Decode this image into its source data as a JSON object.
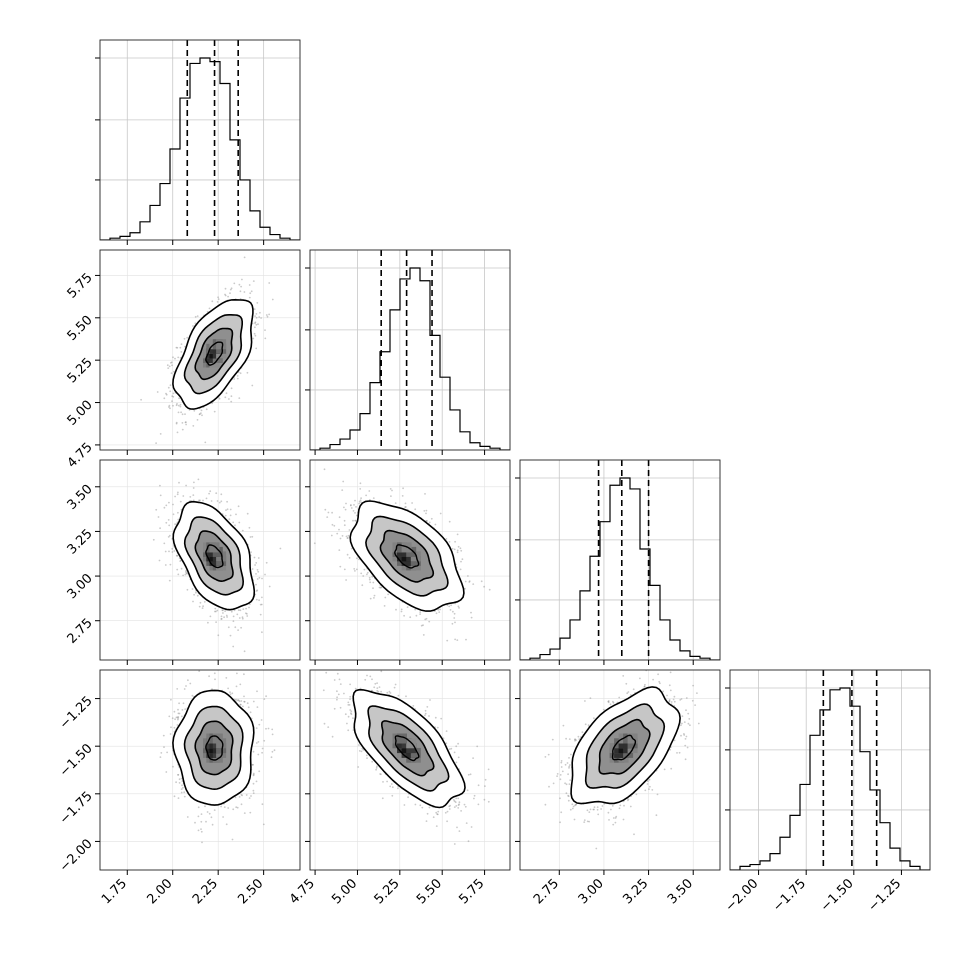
{
  "chart_data": {
    "type": "corner",
    "parameters": [
      {
        "index": 0,
        "range": [
          1.6,
          2.7
        ],
        "ticks": [
          1.75,
          2.0,
          2.25,
          2.5
        ],
        "tick_labels": [
          "1.75",
          "2.00",
          "2.25",
          "2.50"
        ],
        "quantiles": [
          2.08,
          2.23,
          2.36
        ],
        "mean": 2.23,
        "sd": 0.1,
        "hist": {
          "edges": [
            1.6,
            1.655,
            1.71,
            1.765,
            1.82,
            1.875,
            1.93,
            1.985,
            2.04,
            2.095,
            2.15,
            2.205,
            2.26,
            2.315,
            2.37,
            2.425,
            2.48,
            2.535,
            2.59,
            2.645,
            2.7
          ],
          "counts": [
            0.0,
            0.01,
            0.02,
            0.04,
            0.1,
            0.19,
            0.31,
            0.5,
            0.78,
            0.97,
            1.0,
            0.98,
            0.86,
            0.55,
            0.33,
            0.16,
            0.07,
            0.03,
            0.01,
            0.0
          ]
        }
      },
      {
        "index": 1,
        "range": [
          4.72,
          5.9
        ],
        "ticks": [
          4.75,
          5.0,
          5.25,
          5.5,
          5.75
        ],
        "tick_labels": [
          "4.75",
          "5.00",
          "5.25",
          "5.50",
          "5.75"
        ],
        "quantiles": [
          5.14,
          5.29,
          5.44
        ],
        "mean": 5.29,
        "sd": 0.15,
        "hist": {
          "edges": [
            4.72,
            4.779,
            4.838,
            4.897,
            4.956,
            5.015,
            5.074,
            5.133,
            5.192,
            5.251,
            5.31,
            5.369,
            5.428,
            5.487,
            5.546,
            5.605,
            5.664,
            5.723,
            5.782,
            5.841,
            5.9
          ],
          "counts": [
            0.0,
            0.01,
            0.03,
            0.06,
            0.11,
            0.2,
            0.37,
            0.54,
            0.77,
            0.94,
            1.0,
            0.93,
            0.63,
            0.4,
            0.22,
            0.1,
            0.04,
            0.02,
            0.01,
            0.0
          ]
        }
      },
      {
        "index": 2,
        "range": [
          2.53,
          3.65
        ],
        "ticks": [
          2.75,
          3.0,
          3.25,
          3.5
        ],
        "tick_labels": [
          "2.75",
          "3.00",
          "3.25",
          "3.50"
        ],
        "quantiles": [
          2.97,
          3.1,
          3.25
        ],
        "mean": 3.11,
        "sd": 0.14,
        "hist": {
          "edges": [
            2.53,
            2.586,
            2.642,
            2.698,
            2.754,
            2.81,
            2.866,
            2.922,
            2.978,
            3.034,
            3.09,
            3.146,
            3.202,
            3.258,
            3.314,
            3.37,
            3.426,
            3.482,
            3.538,
            3.594,
            3.65
          ],
          "counts": [
            0.0,
            0.01,
            0.03,
            0.06,
            0.12,
            0.22,
            0.38,
            0.57,
            0.76,
            0.96,
            1.0,
            0.94,
            0.61,
            0.41,
            0.22,
            0.11,
            0.05,
            0.02,
            0.01,
            0.0
          ]
        }
      },
      {
        "index": 3,
        "range": [
          -2.15,
          -1.1
        ],
        "ticks": [
          -2.0,
          -1.75,
          -1.5,
          -1.25
        ],
        "tick_labels": [
          "−2.00",
          "−1.75",
          "−1.50",
          "−1.25"
        ],
        "quantiles": [
          -1.66,
          -1.51,
          -1.38
        ],
        "mean": -1.51,
        "sd": 0.14,
        "hist": {
          "edges": [
            -2.15,
            -2.0975,
            -2.045,
            -1.9925,
            -1.94,
            -1.8875,
            -1.835,
            -1.7825,
            -1.73,
            -1.6775,
            -1.625,
            -1.5725,
            -1.52,
            -1.4675,
            -1.415,
            -1.3625,
            -1.31,
            -1.2575,
            -1.205,
            -1.1525,
            -1.1
          ],
          "counts": [
            0.0,
            0.02,
            0.03,
            0.05,
            0.09,
            0.18,
            0.3,
            0.47,
            0.74,
            0.88,
            0.99,
            1.0,
            0.9,
            0.65,
            0.44,
            0.26,
            0.12,
            0.05,
            0.02,
            0.0
          ]
        }
      }
    ],
    "correlations": [
      {
        "x": 0,
        "y": 1,
        "rho": 0.55
      },
      {
        "x": 0,
        "y": 2,
        "rho": -0.45
      },
      {
        "x": 1,
        "y": 2,
        "rho": -0.5
      },
      {
        "x": 0,
        "y": 3,
        "rho": 0.0
      },
      {
        "x": 1,
        "y": 3,
        "rho": -0.65
      },
      {
        "x": 2,
        "y": 3,
        "rho": 0.5
      }
    ],
    "contour_levels_sigma": [
      0.5,
      1.0,
      1.5,
      2.0
    ],
    "grid": true
  }
}
